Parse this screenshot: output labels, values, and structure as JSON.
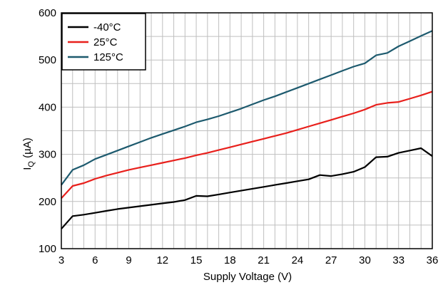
{
  "chart_data": {
    "type": "line",
    "xlabel": "Supply Voltage (V)",
    "ylabel": "I",
    "ylabel_sub": "Q",
    "ylabel_unit": " (µA)",
    "xlim": [
      3,
      36
    ],
    "ylim": [
      100,
      600
    ],
    "xticks": [
      3,
      6,
      9,
      12,
      15,
      18,
      21,
      24,
      27,
      30,
      33,
      36
    ],
    "yticks": [
      100,
      200,
      300,
      400,
      500,
      600
    ],
    "x_minor_step": 1,
    "y_minor_step": 50,
    "grid": true,
    "legend_position": "top-left",
    "series": [
      {
        "name": "-40°C",
        "color": "#000000",
        "x": [
          3,
          4,
          5,
          6,
          7,
          8,
          9,
          10,
          11,
          12,
          13,
          14,
          15,
          16,
          17,
          18,
          19,
          20,
          21,
          22,
          23,
          24,
          25,
          26,
          27,
          28,
          29,
          30,
          31,
          32,
          33,
          34,
          35,
          36
        ],
        "y": [
          142,
          169,
          172,
          176,
          180,
          184,
          187,
          190,
          193,
          196,
          199,
          203,
          212,
          211,
          215,
          219,
          223,
          227,
          231,
          235,
          239,
          243,
          247,
          256,
          254,
          258,
          263,
          273,
          294,
          295,
          303,
          308,
          313,
          296
        ]
      },
      {
        "name": "25°C",
        "color": "#e8201c",
        "x": [
          3,
          4,
          5,
          6,
          7,
          8,
          9,
          10,
          11,
          12,
          13,
          14,
          15,
          16,
          17,
          18,
          19,
          20,
          21,
          22,
          23,
          24,
          25,
          26,
          27,
          28,
          29,
          30,
          31,
          32,
          33,
          34,
          35,
          36
        ],
        "y": [
          207,
          233,
          239,
          248,
          255,
          261,
          267,
          272,
          277,
          282,
          287,
          292,
          298,
          303,
          309,
          315,
          321,
          327,
          333,
          339,
          345,
          352,
          359,
          366,
          373,
          380,
          387,
          395,
          405,
          409,
          411,
          418,
          425,
          433
        ]
      },
      {
        "name": "125°C",
        "color": "#1d5a6e",
        "x": [
          3,
          4,
          5,
          6,
          7,
          8,
          9,
          10,
          11,
          12,
          13,
          14,
          15,
          16,
          17,
          18,
          19,
          20,
          21,
          22,
          23,
          24,
          25,
          26,
          27,
          28,
          29,
          30,
          31,
          32,
          33,
          34,
          35,
          36
        ],
        "y": [
          235,
          267,
          277,
          290,
          299,
          308,
          317,
          326,
          335,
          343,
          351,
          359,
          368,
          374,
          381,
          389,
          397,
          406,
          415,
          423,
          432,
          441,
          450,
          459,
          468,
          477,
          486,
          493,
          510,
          515,
          529,
          540,
          551,
          562
        ]
      }
    ]
  }
}
